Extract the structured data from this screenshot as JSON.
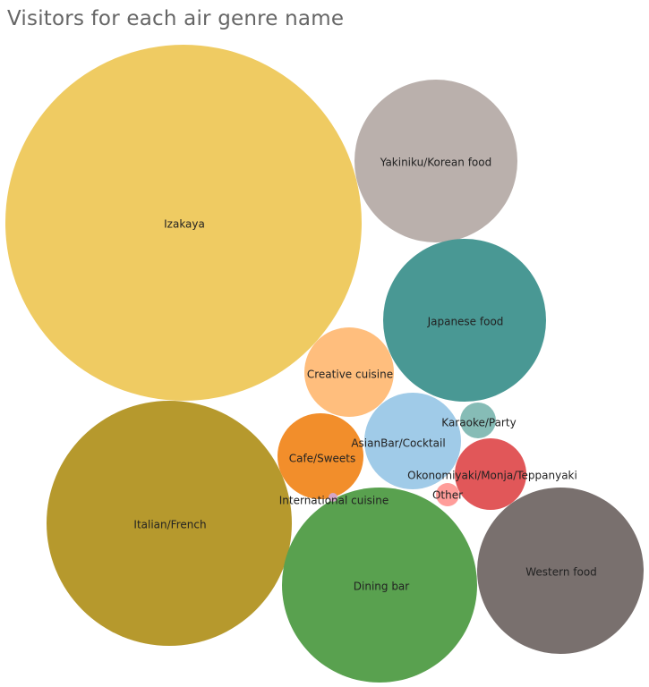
{
  "chart_data": {
    "type": "bubble",
    "title": "Visitors for each air genre name",
    "series": [
      {
        "name": "Izakaya",
        "color": "#EFCB62"
      },
      {
        "name": "Italian/French",
        "color": "#B6992D"
      },
      {
        "name": "Dining bar",
        "color": "#59A14F"
      },
      {
        "name": "Yakiniku/Korean food",
        "color": "#BAB0AC"
      },
      {
        "name": "Japanese food",
        "color": "#499894"
      },
      {
        "name": "Western food",
        "color": "#79706E"
      },
      {
        "name": "Creative cuisine",
        "color": "#FFBE7D"
      },
      {
        "name": "AsianBar/Cocktail",
        "color": "#A0CBE8"
      },
      {
        "name": "Cafe/Sweets",
        "color": "#F28E2B"
      },
      {
        "name": "Okonomiyaki/Monja/Teppanyaki",
        "color": "#E15759"
      },
      {
        "name": "Karaoke/Party",
        "color": "#86BCB6"
      },
      {
        "name": "Other",
        "color": "#FF9D9A"
      },
      {
        "name": "International cuisine",
        "color": "#D4A6C8"
      }
    ]
  }
}
